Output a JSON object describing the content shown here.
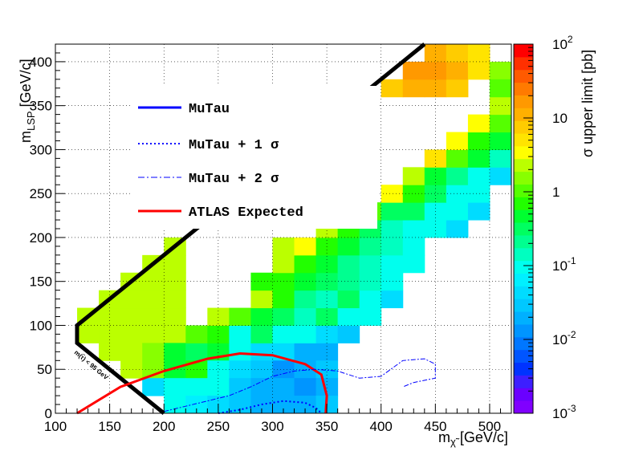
{
  "chart_data": {
    "type": "heatmap",
    "xlabel": "m",
    "xlabel_sub": "χ̃",
    "xlabel_unit": " [GeV/c]",
    "ylabel": "m",
    "ylabel_sub": "LSP",
    "ylabel_unit": " [GeV/c]",
    "zlabel": "σ upper limit [pb]",
    "xlim": [
      100,
      520
    ],
    "ylim": [
      0,
      420
    ],
    "zlim": [
      0.001,
      100
    ],
    "z_log": true,
    "grid": true,
    "x_ticks": [
      "100",
      "150",
      "200",
      "250",
      "300",
      "350",
      "400",
      "450",
      "500"
    ],
    "y_ticks": [
      "0",
      "50",
      "100",
      "150",
      "200",
      "250",
      "300",
      "350",
      "400"
    ],
    "z_tick_labels": [
      {
        "base": "10",
        "exp": "2",
        "value": 100
      },
      {
        "base": "10",
        "exp": "",
        "value": 10
      },
      {
        "base": "1",
        "exp": "",
        "value": 1
      },
      {
        "base": "10",
        "exp": "-1",
        "value": 0.1
      },
      {
        "base": "10",
        "exp": "-2",
        "value": 0.01
      },
      {
        "base": "10",
        "exp": "-3",
        "value": 0.001
      }
    ],
    "palette": [
      "#8000ff",
      "#6a00ff",
      "#3d1fff",
      "#0033ff",
      "#0055ff",
      "#0077ff",
      "#0095ff",
      "#00b0ff",
      "#00c8ff",
      "#00dcff",
      "#00f0ff",
      "#00ffee",
      "#00ffc0",
      "#00ff90",
      "#00ff60",
      "#00ff30",
      "#22ff00",
      "#55ff00",
      "#88ff00",
      "#bbff00",
      "#ffff00",
      "#ffe400",
      "#ffcc00",
      "#ffb000",
      "#ff9900",
      "#ff7a00",
      "#ff5a00",
      "#ff3000",
      "#ff0000"
    ],
    "bin_width": 20,
    "bin_height": 20,
    "bins": [
      [
        120,
        80,
        -0.5,
        2.0
      ],
      [
        140,
        80,
        -0.5,
        2.0
      ],
      [
        160,
        80,
        -0.5,
        2.0
      ],
      [
        180,
        80,
        -0.5,
        2.0
      ],
      [
        200,
        80,
        -0.5,
        2.0
      ],
      [
        120,
        100,
        -0.5,
        2.0
      ],
      [
        140,
        100,
        -0.5,
        2.0
      ],
      [
        160,
        100,
        -0.5,
        2.0
      ],
      [
        180,
        100,
        -0.5,
        2.0
      ],
      [
        200,
        100,
        -0.5,
        2.0
      ],
      [
        140,
        120,
        -0.5,
        2.0
      ],
      [
        160,
        120,
        -0.5,
        2.0
      ],
      [
        180,
        120,
        -0.5,
        2.0
      ],
      [
        200,
        120,
        -0.5,
        2.0
      ],
      [
        160,
        140,
        -0.5,
        2.0
      ],
      [
        180,
        140,
        -0.5,
        2.0
      ],
      [
        200,
        140,
        -0.5,
        2.0
      ],
      [
        180,
        160,
        -0.5,
        2.0
      ],
      [
        200,
        160,
        -0.5,
        2.0
      ],
      [
        200,
        180,
        -0.5,
        2.0
      ],
      [
        140,
        60,
        0,
        2.0
      ],
      [
        160,
        60,
        0,
        2.0
      ],
      [
        180,
        60,
        0,
        1.5
      ],
      [
        200,
        60,
        0,
        0.5
      ],
      [
        220,
        60,
        0,
        0.3
      ],
      [
        240,
        60,
        0,
        0.5
      ],
      [
        260,
        60,
        0,
        0.1
      ],
      [
        280,
        60,
        0,
        0.05
      ],
      [
        300,
        60,
        0,
        0.05
      ],
      [
        320,
        60,
        0,
        0.02
      ],
      [
        340,
        60,
        0,
        0.02
      ],
      [
        160,
        40,
        0,
        2.0
      ],
      [
        180,
        40,
        0,
        1.5
      ],
      [
        200,
        40,
        0,
        0.4
      ],
      [
        220,
        40,
        0,
        0.6
      ],
      [
        240,
        40,
        0,
        0.08
      ],
      [
        260,
        40,
        0,
        0.04
      ],
      [
        280,
        40,
        0,
        0.03
      ],
      [
        300,
        40,
        0,
        0.015
      ],
      [
        320,
        40,
        0,
        0.02
      ],
      [
        340,
        40,
        0,
        0.03
      ],
      [
        180,
        20,
        0,
        0.05
      ],
      [
        200,
        20,
        0,
        0.08
      ],
      [
        220,
        20,
        0,
        0.1
      ],
      [
        240,
        20,
        0,
        0.08
      ],
      [
        260,
        20,
        0,
        0.03
      ],
      [
        280,
        20,
        0,
        0.02
      ],
      [
        300,
        20,
        0,
        0.02
      ],
      [
        320,
        20,
        0,
        0.015
      ],
      [
        340,
        20,
        0,
        0.02
      ],
      [
        200,
        0,
        0,
        0.1
      ],
      [
        220,
        0,
        0,
        0.07
      ],
      [
        240,
        0,
        0,
        0.05
      ],
      [
        260,
        0,
        0,
        0.03
      ],
      [
        280,
        0,
        0,
        0.02
      ],
      [
        300,
        0,
        0,
        0.02
      ],
      [
        320,
        0,
        0,
        0.02
      ],
      [
        340,
        0,
        0,
        0.03
      ],
      [
        220,
        80,
        0,
        1.0
      ],
      [
        240,
        80,
        0,
        0.7
      ],
      [
        260,
        80,
        0,
        0.08
      ],
      [
        280,
        80,
        0,
        0.3
      ],
      [
        300,
        80,
        0,
        0.1
      ],
      [
        320,
        80,
        0,
        0.08
      ],
      [
        340,
        80,
        0,
        0.05
      ],
      [
        360,
        80,
        0,
        0.03
      ],
      [
        240,
        100,
        0,
        2.0
      ],
      [
        260,
        100,
        0,
        1.0
      ],
      [
        280,
        100,
        0,
        0.5
      ],
      [
        300,
        100,
        0,
        0.3
      ],
      [
        320,
        100,
        0,
        0.15
      ],
      [
        340,
        100,
        0,
        0.3
      ],
      [
        360,
        100,
        0,
        0.1
      ],
      [
        380,
        100,
        0,
        0.08
      ],
      [
        280,
        120,
        0,
        2.0
      ],
      [
        300,
        120,
        0,
        0.8
      ],
      [
        320,
        120,
        0,
        0.2
      ],
      [
        340,
        120,
        0,
        0.15
      ],
      [
        360,
        120,
        0,
        0.3
      ],
      [
        380,
        120,
        0,
        0.1
      ],
      [
        400,
        120,
        0,
        0.05
      ],
      [
        280,
        140,
        0,
        0.6
      ],
      [
        300,
        140,
        0,
        0.8
      ],
      [
        320,
        140,
        0,
        0.5
      ],
      [
        340,
        140,
        0,
        0.3
      ],
      [
        360,
        140,
        0,
        0.2
      ],
      [
        380,
        140,
        0,
        0.15
      ],
      [
        400,
        140,
        0,
        0.08
      ],
      [
        300,
        160,
        0,
        2.0
      ],
      [
        320,
        160,
        0,
        0.7
      ],
      [
        340,
        160,
        0,
        0.5
      ],
      [
        360,
        160,
        0,
        0.2
      ],
      [
        380,
        160,
        0,
        0.15
      ],
      [
        400,
        160,
        0,
        0.1
      ],
      [
        420,
        160,
        0,
        0.08
      ],
      [
        300,
        180,
        0,
        2.0
      ],
      [
        320,
        180,
        0,
        3.0
      ],
      [
        340,
        180,
        0,
        0.8
      ],
      [
        360,
        180,
        0,
        0.5
      ],
      [
        380,
        180,
        0,
        0.2
      ],
      [
        400,
        180,
        0,
        0.15
      ],
      [
        420,
        180,
        0,
        0.1
      ],
      [
        340,
        200,
        0,
        2.0
      ],
      [
        360,
        200,
        0,
        0.6
      ],
      [
        380,
        200,
        0,
        0.3
      ],
      [
        400,
        200,
        0,
        0.15
      ],
      [
        420,
        200,
        0,
        0.1
      ],
      [
        440,
        200,
        0,
        0.1
      ],
      [
        460,
        200,
        0,
        0.05
      ],
      [
        360,
        220,
        0,
        5.0
      ],
      [
        380,
        220,
        0,
        1.0
      ],
      [
        400,
        220,
        0,
        0.3
      ],
      [
        420,
        220,
        0,
        0.3
      ],
      [
        440,
        220,
        0,
        0.1
      ],
      [
        460,
        220,
        0,
        0.08
      ],
      [
        480,
        220,
        0,
        0.05
      ],
      [
        400,
        240,
        0,
        3.0
      ],
      [
        420,
        240,
        0,
        0.6
      ],
      [
        440,
        240,
        0,
        0.3
      ],
      [
        460,
        240,
        0,
        0.1
      ],
      [
        480,
        240,
        0,
        0.1
      ],
      [
        420,
        260,
        0,
        2.0
      ],
      [
        440,
        260,
        0,
        0.5
      ],
      [
        460,
        260,
        0,
        0.2
      ],
      [
        480,
        260,
        0,
        0.1
      ],
      [
        500,
        260,
        0,
        0.05
      ],
      [
        440,
        280,
        0,
        5.0
      ],
      [
        460,
        280,
        0,
        1.0
      ],
      [
        480,
        280,
        0,
        0.4
      ],
      [
        500,
        280,
        0,
        0.15
      ],
      [
        460,
        300,
        0,
        3.0
      ],
      [
        480,
        300,
        0,
        0.8
      ],
      [
        500,
        300,
        0,
        0.4
      ],
      [
        480,
        320,
        0,
        3.0
      ],
      [
        500,
        320,
        0,
        1.0
      ],
      [
        500,
        340,
        0,
        2.0
      ],
      [
        400,
        360,
        0,
        8.0
      ],
      [
        420,
        360,
        0,
        12.0
      ],
      [
        440,
        360,
        0,
        10.0
      ],
      [
        460,
        360,
        0,
        8.0
      ],
      [
        420,
        380,
        0,
        20.0
      ],
      [
        440,
        380,
        0,
        15.0
      ],
      [
        460,
        380,
        0,
        10.0
      ],
      [
        480,
        380,
        0,
        5.0
      ],
      [
        440,
        400,
        0,
        12.0
      ],
      [
        460,
        400,
        0,
        8.0
      ],
      [
        480,
        400,
        0,
        6.0
      ],
      [
        500,
        380,
        0,
        1.5
      ],
      [
        500,
        360,
        0,
        1.0
      ]
    ],
    "legend": [
      {
        "label": "MuTau",
        "style": "solid-blue"
      },
      {
        "label": "MuTau + 1 σ",
        "style": "dotted-blue"
      },
      {
        "label": "MuTau + 2 σ",
        "style": "dashdot-blue"
      },
      {
        "label": "ATLAS Expected",
        "style": "solid-red"
      }
    ],
    "annotation": "m(τ̃) < 95 GeV"
  }
}
